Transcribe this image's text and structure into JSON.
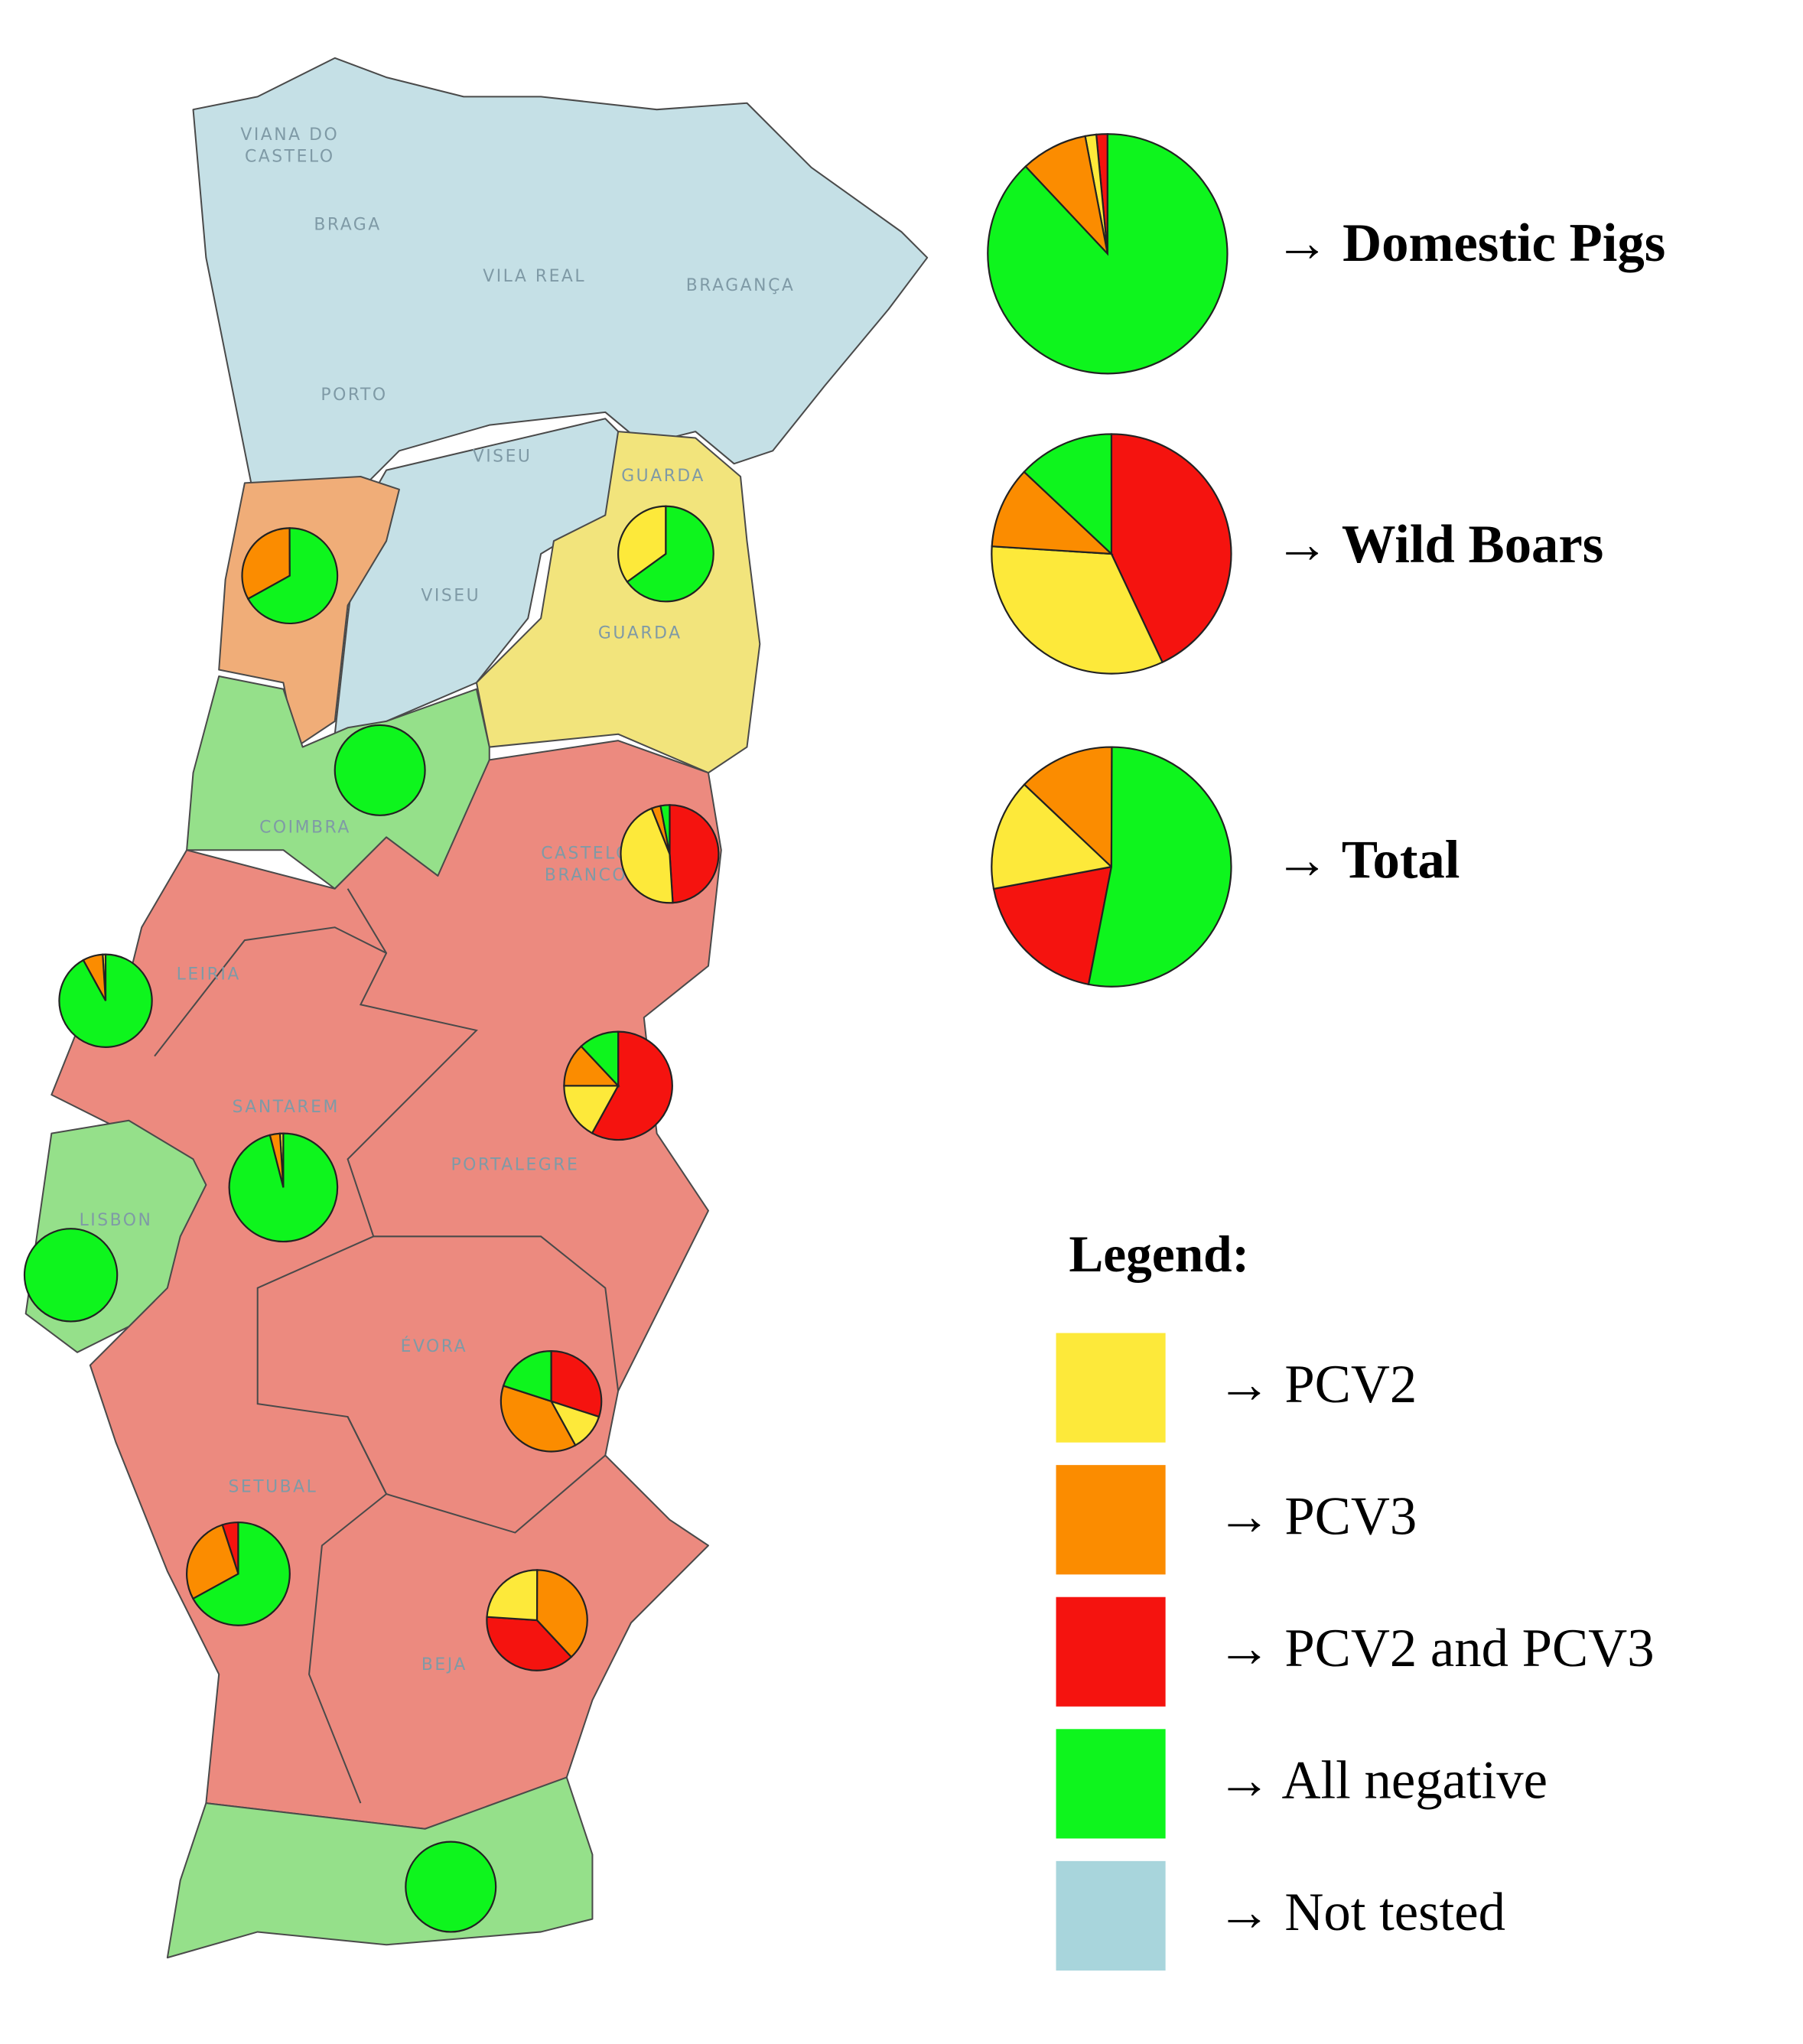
{
  "summary": [
    {
      "label": "→ Domestic Pigs",
      "values": [
        1.5,
        9,
        1.5,
        88
      ]
    },
    {
      "label": "→ Wild Boars",
      "values": [
        33,
        11,
        43,
        13
      ]
    },
    {
      "label": "→ Total",
      "values": [
        15,
        13,
        19,
        53
      ]
    }
  ],
  "map_pies": [
    {
      "values": [
        0,
        33,
        0,
        67
      ]
    },
    {
      "values": [
        35,
        0,
        0,
        65
      ]
    },
    {
      "values": [
        0,
        0,
        0,
        100
      ]
    },
    {
      "values": [
        45,
        3,
        49,
        3
      ]
    },
    {
      "values": [
        1,
        7,
        0,
        92
      ]
    },
    {
      "values": [
        17,
        13,
        58,
        12
      ]
    },
    {
      "values": [
        1,
        3,
        0,
        96
      ]
    },
    {
      "values": [
        0,
        0,
        0,
        100
      ]
    },
    {
      "values": [
        12,
        38,
        30,
        20
      ]
    },
    {
      "values": [
        0,
        28,
        5,
        67
      ]
    },
    {
      "values": [
        24,
        38,
        38,
        0
      ]
    },
    {
      "values": [
        0,
        0,
        0,
        100
      ]
    }
  ],
  "districts": [
    "VIANA DO",
    "CASTELO",
    "BRAGA",
    "VILA REAL",
    "BRAGANÇA",
    "PORTO",
    "VISEU",
    "GUARDA",
    "VISEU",
    "GUARDA",
    "COIMBRA",
    "CASTELO",
    "BRANCO",
    "LEIRIA",
    "SANTAREM",
    "PORTALEGRE",
    "LISBON",
    "ÉVORA",
    "SETUBAL",
    "BEJA"
  ],
  "legend": {
    "title": "Legend:",
    "items": [
      {
        "label": "→ PCV2",
        "color": "#fde93a"
      },
      {
        "label": "→ PCV3",
        "color": "#fb8c00"
      },
      {
        "label": "→ PCV2 and PCV3",
        "color": "#f5130f"
      },
      {
        "label": "→ All negative",
        "color": "#0ef51d"
      },
      {
        "label": "→ Not tested",
        "color": "#a8d5dc"
      }
    ]
  }
}
